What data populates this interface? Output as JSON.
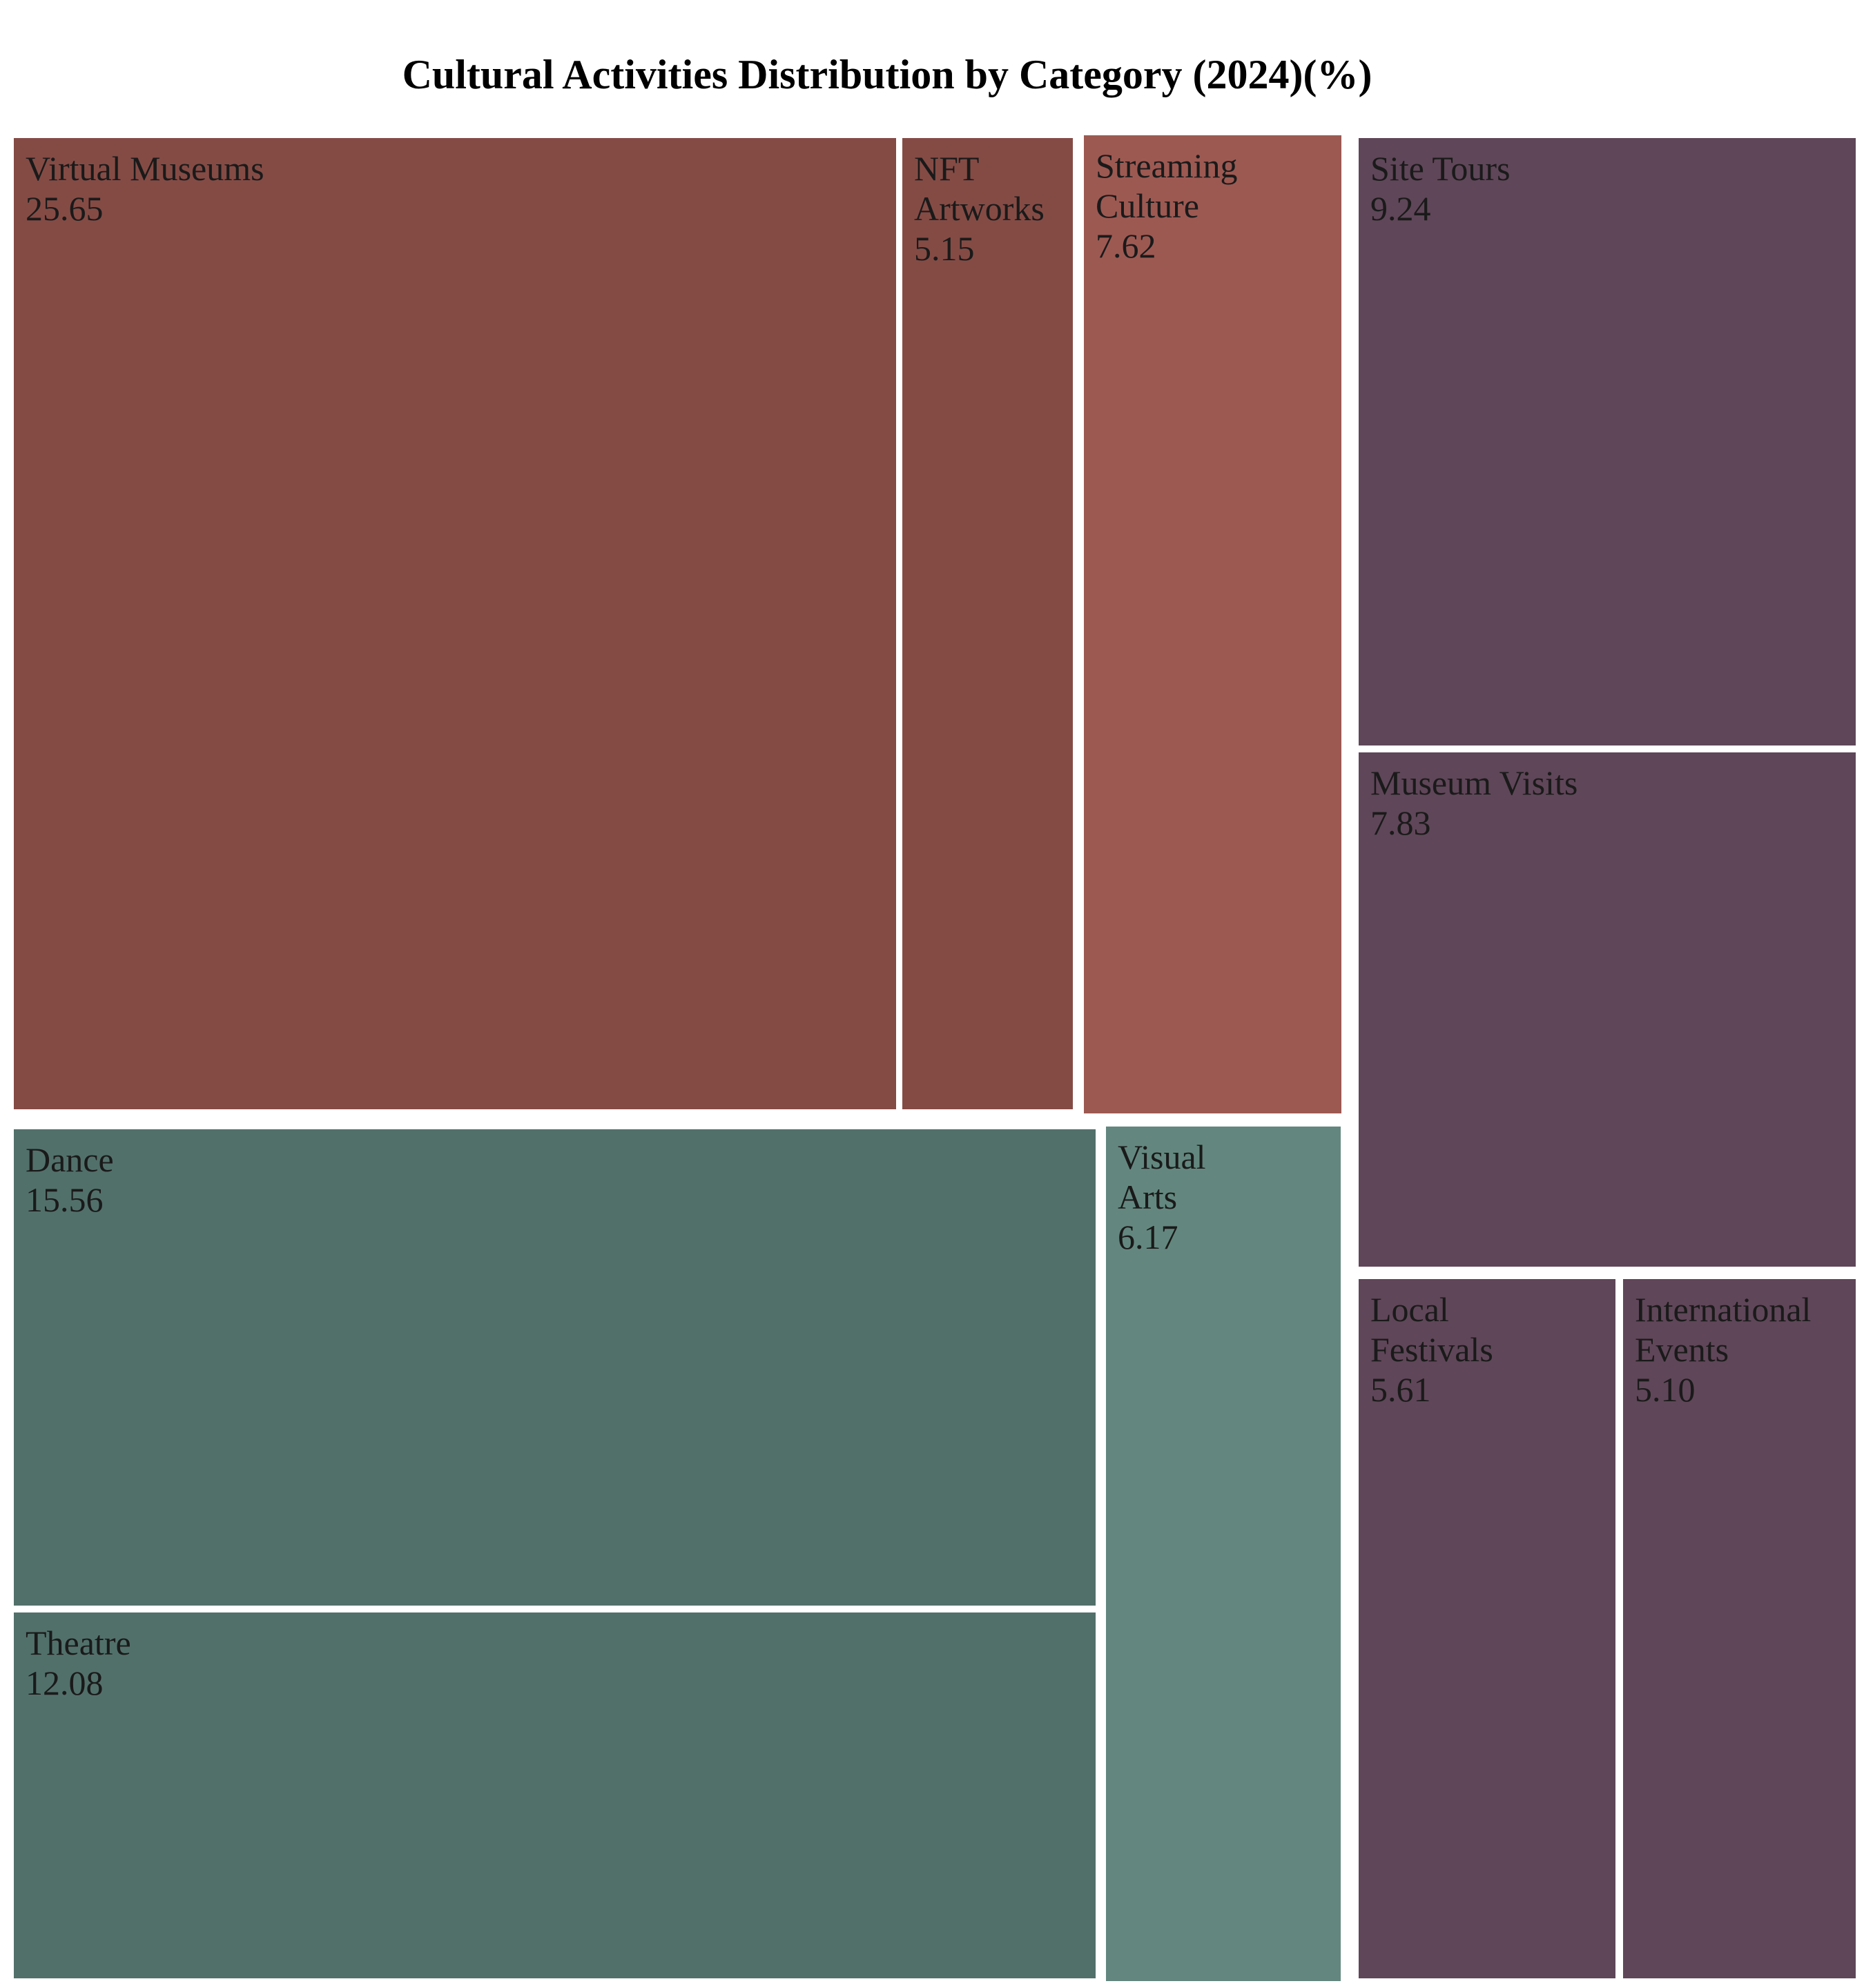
{
  "chart_data": {
    "type": "treemap",
    "title": "Cultural Activities Distribution by Category (2024)(%)",
    "colors": {
      "red_dark": "#844b45",
      "red_light": "#9c5952",
      "green_dark": "#52706a",
      "green_light": "#63877e",
      "purple": "#5f4658"
    },
    "cells": [
      {
        "name": "Virtual Museums",
        "label_lines": [
          "Virtual Museums"
        ],
        "value": 25.65,
        "value_text": "25.65",
        "color": "#844b45"
      },
      {
        "name": "NFT Artworks",
        "label_lines": [
          "NFT",
          "Artworks"
        ],
        "value": 5.15,
        "value_text": "5.15",
        "color": "#844b45"
      },
      {
        "name": "Streaming Culture",
        "label_lines": [
          "Streaming",
          "Culture"
        ],
        "value": 7.62,
        "value_text": "7.62",
        "color": "#9c5952"
      },
      {
        "name": "Site Tours",
        "label_lines": [
          "Site Tours"
        ],
        "value": 9.24,
        "value_text": "9.24",
        "color": "#5f4658"
      },
      {
        "name": "Museum Visits",
        "label_lines": [
          "Museum Visits"
        ],
        "value": 7.83,
        "value_text": "7.83",
        "color": "#5f4658"
      },
      {
        "name": "Local Festivals",
        "label_lines": [
          "Local",
          "Festivals"
        ],
        "value": 5.61,
        "value_text": "5.61",
        "color": "#5f4658"
      },
      {
        "name": "International Events",
        "label_lines": [
          "International",
          "Events"
        ],
        "value": 5.1,
        "value_text": "5.10",
        "color": "#5f4658"
      },
      {
        "name": "Dance",
        "label_lines": [
          "Dance"
        ],
        "value": 15.56,
        "value_text": "15.56",
        "color": "#52706a"
      },
      {
        "name": "Theatre",
        "label_lines": [
          "Theatre"
        ],
        "value": 12.08,
        "value_text": "12.08",
        "color": "#52706a"
      },
      {
        "name": "Visual Arts",
        "label_lines": [
          "Visual",
          "Arts"
        ],
        "value": 6.17,
        "value_text": "6.17",
        "color": "#63877e"
      }
    ]
  }
}
